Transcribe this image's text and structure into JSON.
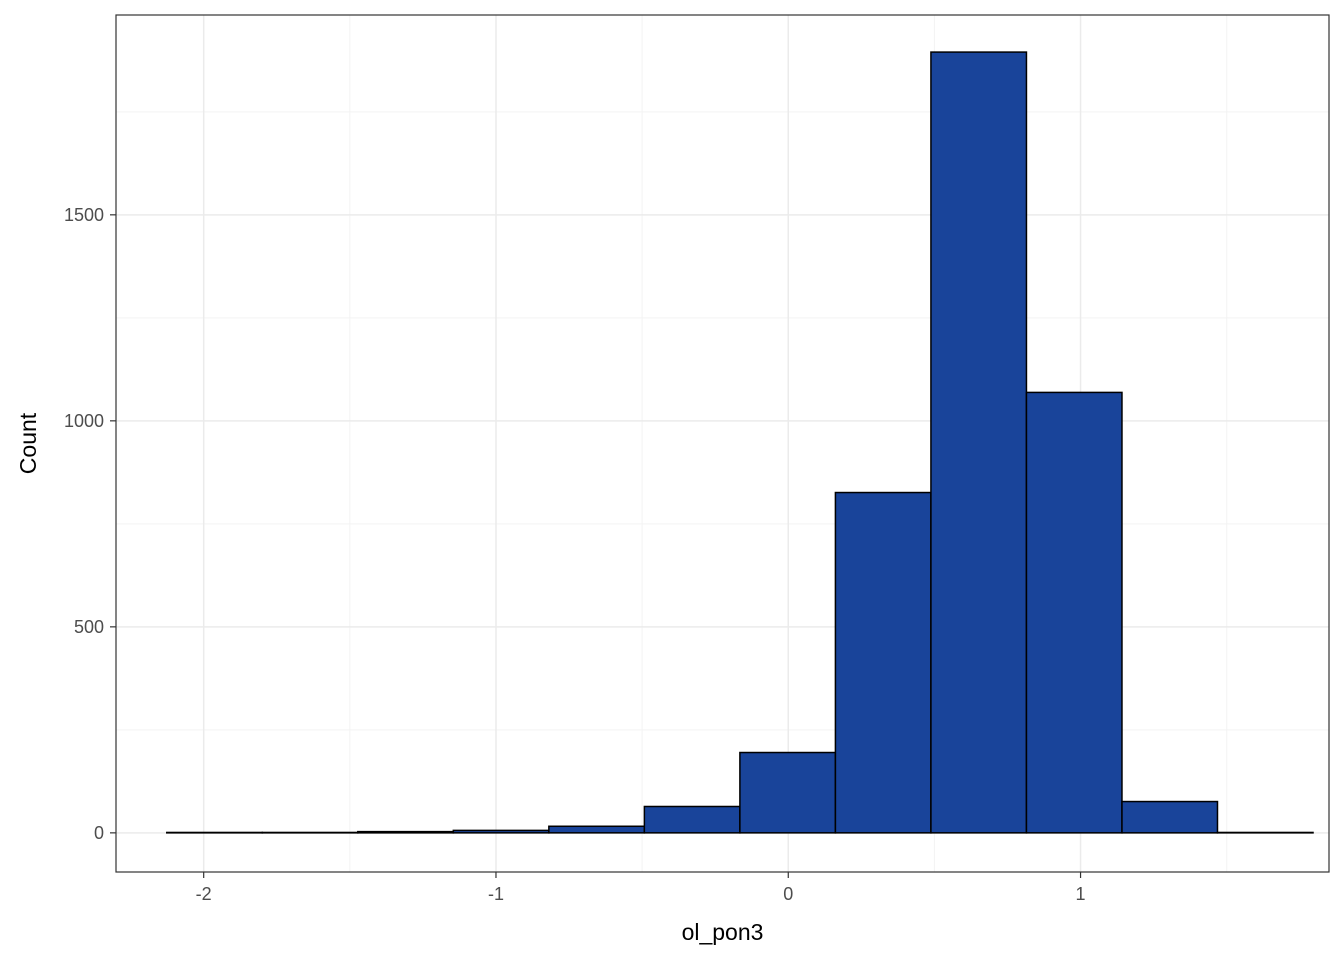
{
  "chart_data": {
    "type": "bar",
    "subtype": "histogram",
    "title": "",
    "xlabel": "ol_pon3",
    "ylabel": "Count",
    "xlim": [
      -2.3,
      1.85
    ],
    "ylim": [
      -95,
      1985
    ],
    "x_ticks": [
      -2,
      -1,
      0,
      1
    ],
    "x_tick_labels": [
      "-2",
      "-1",
      "0",
      "1"
    ],
    "y_ticks": [
      0,
      500,
      1000,
      1500
    ],
    "y_tick_labels": [
      "0",
      "500",
      "1000",
      "1500"
    ],
    "bins": {
      "edges": [
        -2.1263,
        -1.7995,
        -1.4727,
        -1.1459,
        -0.8191,
        -0.4923,
        -0.1655,
        0.1613,
        0.4881,
        0.8149,
        1.1417,
        1.4685,
        1.7953
      ],
      "counts": [
        1,
        1,
        3,
        6,
        16,
        64,
        195,
        826,
        1895,
        1069,
        76,
        1
      ]
    },
    "grid": true,
    "legend": "none",
    "colors": {
      "bar_fill": "#19449A",
      "bar_outline": "#000000",
      "grid_major": "#ebebeb",
      "grid_minor": "#f3f3f3",
      "panel_border": "#333333",
      "tick_label": "#4d4d4d"
    }
  }
}
